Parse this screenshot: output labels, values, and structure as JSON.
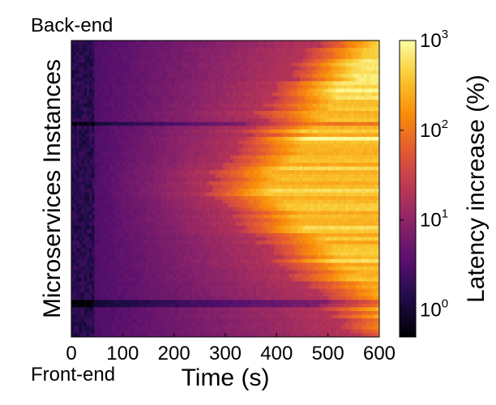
{
  "chart_data": {
    "type": "heatmap",
    "title": "",
    "xlabel": "Time (s)",
    "ylabel": "Microservices Instances",
    "y_top_label": "Back-end",
    "y_bottom_label": "Front-end",
    "xlim": [
      0,
      600
    ],
    "x_ticks": [
      0,
      100,
      200,
      300,
      400,
      500,
      600
    ],
    "x_tick_labels": [
      "0",
      "100",
      "200",
      "300",
      "400",
      "500",
      "600"
    ],
    "colorbar": {
      "label": "Latency increase (%)",
      "scale": "log",
      "colormap": "inferno",
      "range": [
        0.5,
        1000
      ],
      "ticks": [
        {
          "base": "10",
          "exp": "0",
          "value": 1
        },
        {
          "base": "10",
          "exp": "1",
          "value": 10
        },
        {
          "base": "10",
          "exp": "2",
          "value": 100
        },
        {
          "base": "10",
          "exp": "3",
          "value": 1000
        }
      ]
    },
    "rows": 80,
    "time_bins": 120,
    "saturation_onset_s": {
      "back_end": 480,
      "mid_stack": 260,
      "front_end": 560
    },
    "level_ranges_pct": {
      "initial": [
        1,
        3
      ],
      "ramp_before_onset": [
        3,
        30
      ],
      "after_onset": [
        30,
        300
      ],
      "peak_back_end": 1000
    }
  }
}
